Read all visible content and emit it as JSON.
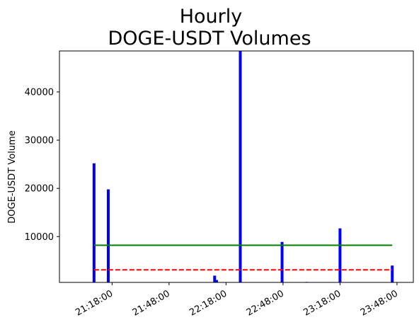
{
  "chart_data": {
    "type": "bar",
    "title_lines": [
      "Hourly",
      "DOGE-USDT Volumes"
    ],
    "xlabel": "",
    "ylabel": "DOGE-USDT Volume",
    "x_tick_labels": [
      "21:18:00",
      "21:48:00",
      "22:18:00",
      "22:48:00",
      "23:18:00",
      "23:48:00"
    ],
    "x_tick_minutes": [
      78,
      108,
      138,
      168,
      198,
      228
    ],
    "x_range_minutes": [
      50.3,
      236.6
    ],
    "y_ticks": [
      10000,
      20000,
      30000,
      40000
    ],
    "ylim": [
      500,
      48500
    ],
    "grid": false,
    "bars": [
      {
        "time": "21:08:30",
        "value": 25200
      },
      {
        "time": "21:16:00",
        "value": 19800
      },
      {
        "time": "22:12:00",
        "value": 1900
      },
      {
        "time": "22:13:00",
        "value": 1000
      },
      {
        "time": "22:25:30",
        "value": 48500
      },
      {
        "time": "22:47:30",
        "value": 8900
      },
      {
        "time": "23:00:30",
        "value": 600
      },
      {
        "time": "23:18:00",
        "value": 11700
      },
      {
        "time": "23:45:30",
        "value": 4000
      }
    ],
    "reference_lines": [
      {
        "value": 8200,
        "color": "#008000",
        "style": "solid",
        "start": "21:08:30",
        "end": "23:45:30"
      },
      {
        "value": 3100,
        "color": "#ff0000",
        "style": "dashed",
        "start": "21:08:30",
        "end": "23:45:30"
      }
    ],
    "colors": {
      "bars": "#0000ff"
    }
  }
}
